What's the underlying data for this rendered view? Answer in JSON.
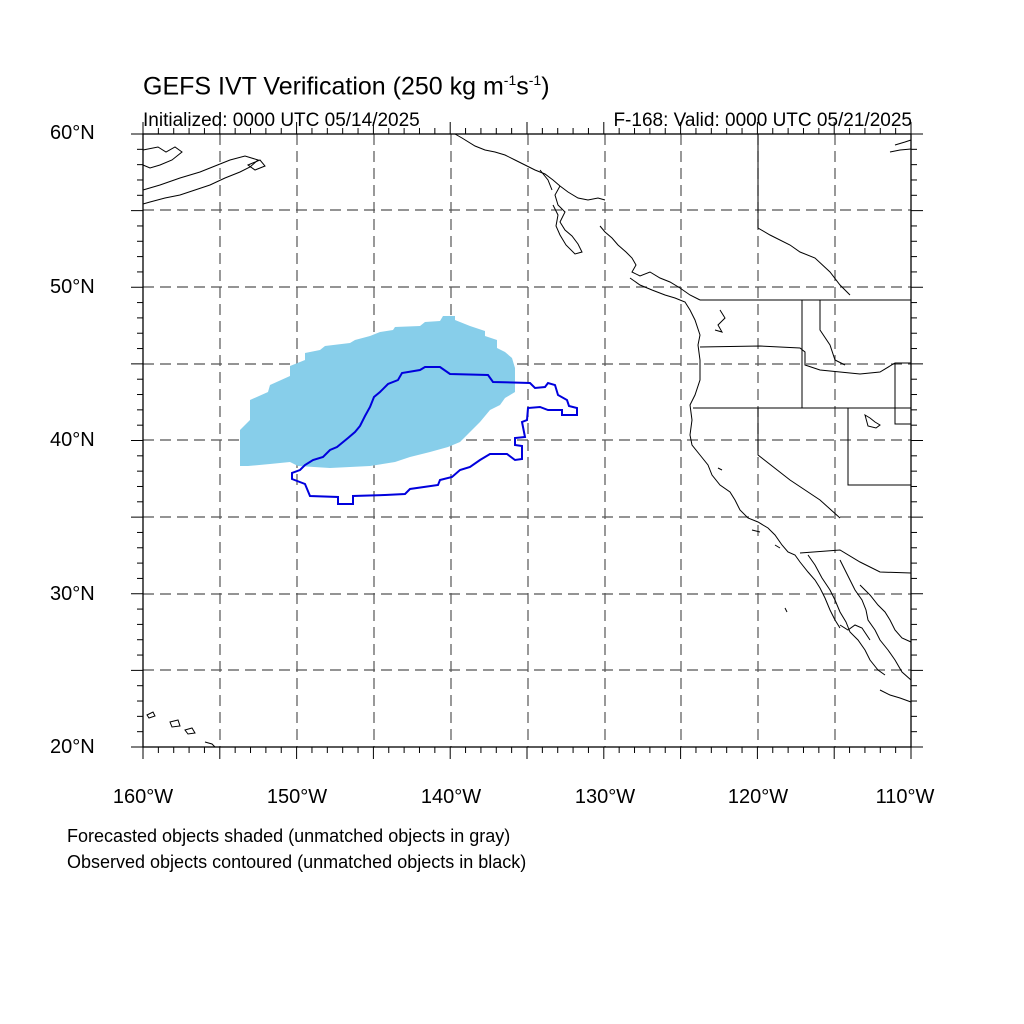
{
  "header": {
    "title_main": "GEFS IVT Verification (250 kg m",
    "title_sup1": "-1",
    "title_mid": "s",
    "title_sup2": "-1",
    "title_end": ")",
    "initialized": "Initialized: 0000 UTC 05/14/2025",
    "valid": "F-168: Valid: 0000 UTC 05/21/2025"
  },
  "map": {
    "lon_range": [
      -160,
      -110
    ],
    "lat_range": [
      20,
      60
    ],
    "lat_labels": [
      "60°N",
      "50°N",
      "40°N",
      "30°N",
      "20°N"
    ],
    "lon_labels": [
      "160°W",
      "150°W",
      "140°W",
      "130°W",
      "120°W",
      "110°W"
    ],
    "grid": true,
    "forecast_object_color": "#87ceea",
    "observed_object_color": "#0000dd"
  },
  "footer": {
    "line1": "Forecasted objects shaded (unmatched objects in gray)",
    "line2": "Observed objects contoured (unmatched objects in black)"
  }
}
